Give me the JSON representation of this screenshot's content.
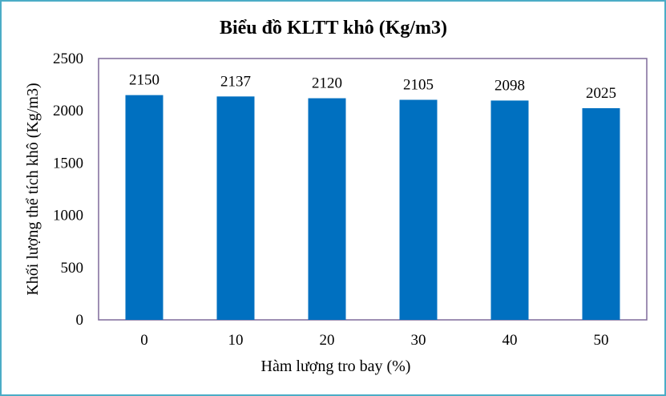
{
  "chart_data": {
    "type": "bar",
    "title": "Biểu đồ KLTT khô (Kg/m3)",
    "xlabel": "Hàm lượng tro bay (%)",
    "ylabel": "Khối lượng thể tích khô (Kg/m3)",
    "categories": [
      "0",
      "10",
      "20",
      "30",
      "40",
      "50"
    ],
    "values": [
      2150,
      2137,
      2120,
      2105,
      2098,
      2025
    ],
    "data_labels": [
      "2150",
      "2137",
      "2120",
      "2105",
      "2098",
      "2025"
    ],
    "yticks": [
      "0",
      "500",
      "1000",
      "1500",
      "2000",
      "2500"
    ],
    "ylim": [
      0,
      2500
    ],
    "grid": false,
    "legend": "none",
    "colors": {
      "bar": "#0070c0",
      "plot_border": "#7f6a9a",
      "frame": "#4bacc6"
    }
  }
}
